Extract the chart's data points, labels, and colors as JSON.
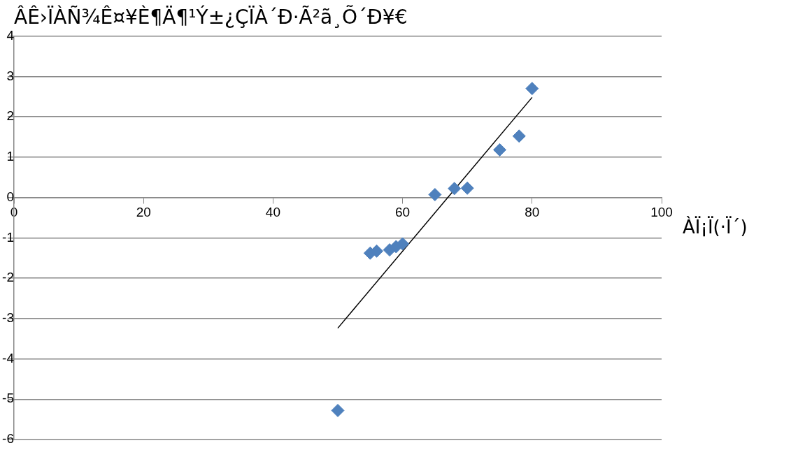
{
  "chart_data": {
    "type": "scatter",
    "title": "ÂÊ›ÏÀÑ¾Ê¤¥È¶Ä¶¹Ý±¿ÇÏÀ´Ð·Ã²ã¸Õ´Ð¥€",
    "xlabel": "ÀÏ¡Ï(·Ï´)",
    "xlim": [
      0,
      100
    ],
    "xticks": [
      0,
      20,
      40,
      60,
      80,
      100
    ],
    "ylim": [
      -6,
      4
    ],
    "yticks": [
      -6,
      -5,
      -4,
      -3,
      -2,
      -1,
      0,
      1,
      2,
      3,
      4
    ],
    "grid": "y",
    "marker": "diamond",
    "series": [
      {
        "color": "#4f81bd",
        "x": [
          50,
          55,
          56,
          58,
          59,
          60,
          65,
          68,
          70,
          75,
          78,
          80
        ],
        "values": [
          -5.28,
          -1.38,
          -1.33,
          -1.3,
          -1.22,
          -1.15,
          0.07,
          0.22,
          0.23,
          1.18,
          1.52,
          2.7
        ]
      },
      {
        "type": "line",
        "color": "#000000",
        "marker": "none",
        "x": [
          50,
          80
        ],
        "values": [
          -3.24,
          2.48
        ]
      }
    ]
  }
}
